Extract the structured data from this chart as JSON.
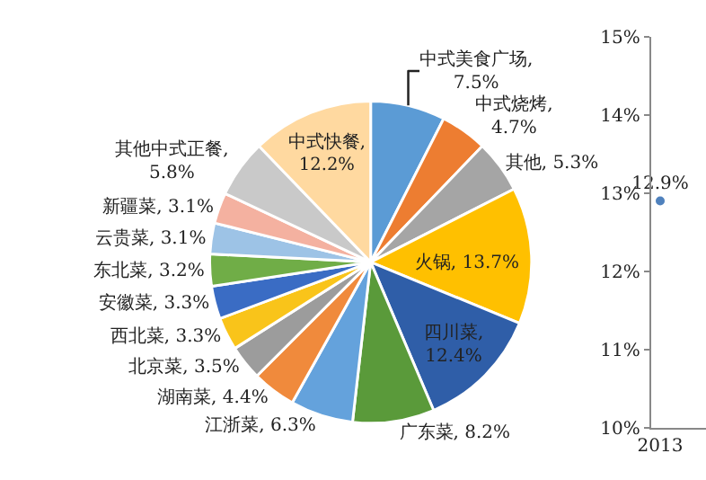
{
  "chart_data": [
    {
      "type": "pie",
      "categories": [
        "中式美食广场",
        "中式烧烤",
        "其他",
        "火锅",
        "四川菜",
        "广东菜",
        "江浙菜",
        "湖南菜",
        "北京菜",
        "西北菜",
        "安徽菜",
        "东北菜",
        "云贵菜",
        "新疆菜",
        "其他中式正餐",
        "中式快餐"
      ],
      "values": [
        7.5,
        4.7,
        5.3,
        13.7,
        12.4,
        8.2,
        6.3,
        4.4,
        3.5,
        3.3,
        3.3,
        3.2,
        3.1,
        3.1,
        5.8,
        12.2
      ],
      "value_labels": [
        ",\n7.5%",
        ",\n4.7%",
        ", 5.3%",
        ", 13.7%",
        ",\n12.4%",
        ", 8.2%",
        ", 6.3%",
        ", 4.4%",
        ", 3.5%",
        ", 3.3%",
        ", 3.3%",
        ", 3.2%",
        ", 3.1%",
        ", 3.1%",
        ",\n5.8%",
        ",\n12.2%"
      ],
      "colors": [
        "#5b9bd5",
        "#ed7d31",
        "#a5a5a5",
        "#ffc000",
        "#2f5ea8",
        "#5a9a3a",
        "#64a2dc",
        "#f08a3c",
        "#9c9c9c",
        "#f9c41a",
        "#3a6cc4",
        "#70ad47",
        "#9dc3e6",
        "#f4b1a0",
        "#c9c9c9",
        "#ffd9a0"
      ],
      "legend": false
    },
    {
      "type": "line",
      "categories": [
        "2013"
      ],
      "series": [
        {
          "color": "#4f81bd",
          "values": [
            12.9
          ],
          "value_labels": [
            "12.9%"
          ]
        }
      ],
      "ylim": [
        10,
        15
      ],
      "yticks": [
        {
          "value": 10,
          "label": "10%"
        },
        {
          "value": 11,
          "label": "11%"
        },
        {
          "value": 12,
          "label": "12%"
        },
        {
          "value": 13,
          "label": "13%"
        },
        {
          "value": 14,
          "label": "14%"
        },
        {
          "value": 15,
          "label": "15%"
        }
      ],
      "marker": "circle",
      "grid": false,
      "legend": false
    }
  ]
}
